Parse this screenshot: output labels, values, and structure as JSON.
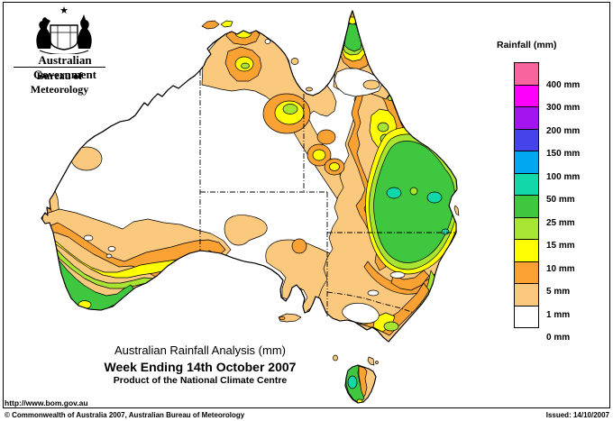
{
  "header": {
    "government": "Australian Government",
    "bureau": "Bureau of Meteorology"
  },
  "legend": {
    "title": "Rainfall (mm)",
    "bands": [
      {
        "color_key": "pink",
        "label": "400 mm"
      },
      {
        "color_key": "magenta",
        "label": "300 mm"
      },
      {
        "color_key": "purple",
        "label": "200 mm"
      },
      {
        "color_key": "blue",
        "label": "150 mm"
      },
      {
        "color_key": "lightblue",
        "label": "100 mm"
      },
      {
        "color_key": "teal",
        "label": "50 mm"
      },
      {
        "color_key": "green",
        "label": "25 mm"
      },
      {
        "color_key": "yellowgreen",
        "label": "15 mm"
      },
      {
        "color_key": "yellow",
        "label": "10 mm"
      },
      {
        "color_key": "orange",
        "label": "5 mm"
      },
      {
        "color_key": "sandy",
        "label": "1 mm"
      },
      {
        "color_key": "white",
        "label": "0 mm"
      }
    ]
  },
  "titles": {
    "line1": "Australian Rainfall Analysis (mm)",
    "line2": "Week Ending 14th October 2007",
    "line3": "Product of the National Climate Centre"
  },
  "footer": {
    "url": "http://www.bom.gov.au",
    "copyright": "© Commonwealth of Australia 2007, Australian Bureau of Meteorology",
    "issued": "Issued: 14/10/2007"
  },
  "colors": {
    "pink": "#F8649E",
    "magenta": "#FC00FC",
    "purple": "#A215F0",
    "blue": "#4444EA",
    "lightblue": "#00A9EF",
    "teal": "#12D7A8",
    "green": "#3FC83F",
    "yellowgreen": "#A8E432",
    "yellow": "#FEFE00",
    "orange": "#F9A133",
    "sandy": "#FBC97E",
    "white": "#FFFFFF",
    "ink": "#000000"
  }
}
